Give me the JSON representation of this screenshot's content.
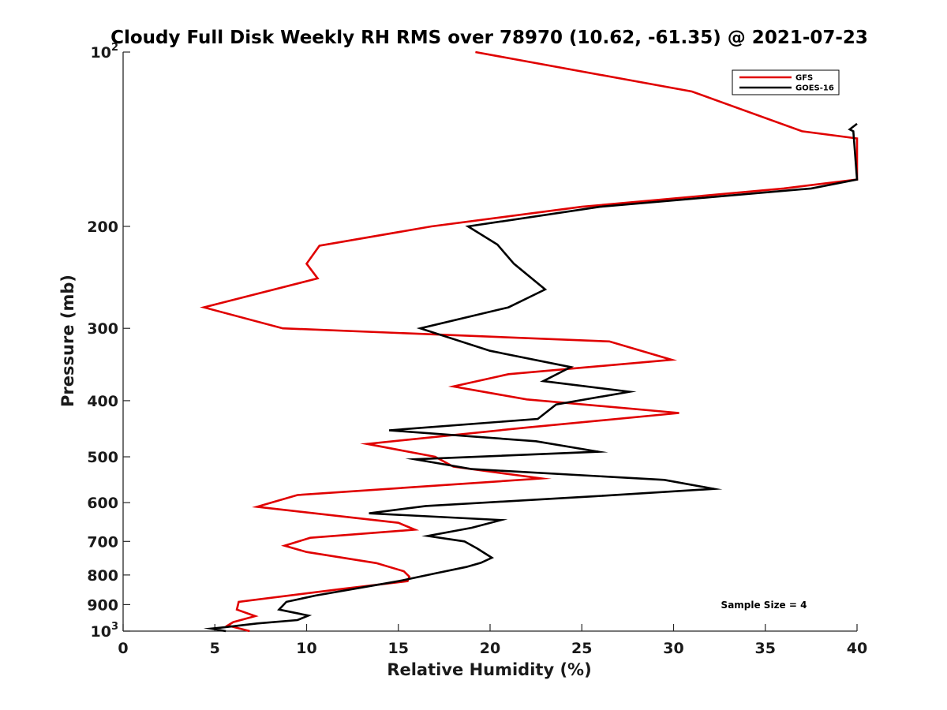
{
  "chart_data": {
    "type": "line",
    "title": "Cloudy Full Disk Weekly RH RMS over 78970 (10.62, -61.35) @ 2021-07-23",
    "xlabel": "Relative Humidity (%)",
    "ylabel": "Pressure (mb)",
    "xlim": [
      0,
      40
    ],
    "ylim": [
      100,
      1000
    ],
    "y_scale": "log",
    "y_reversed": true,
    "x_ticks": [
      0,
      5,
      10,
      15,
      20,
      25,
      30,
      35,
      40
    ],
    "y_ticks": [
      {
        "value": 100,
        "base": "10",
        "exp": "2"
      },
      {
        "value": 200,
        "label": "200"
      },
      {
        "value": 300,
        "label": "300"
      },
      {
        "value": 400,
        "label": "400"
      },
      {
        "value": 500,
        "label": "500"
      },
      {
        "value": 600,
        "label": "600"
      },
      {
        "value": 700,
        "label": "700"
      },
      {
        "value": 800,
        "label": "800"
      },
      {
        "value": 900,
        "label": "900"
      },
      {
        "value": 1000,
        "base": "10",
        "exp": "3"
      }
    ],
    "grid": false,
    "legend_position": "top-right",
    "annotation": "Sample Size = 4",
    "series": [
      {
        "name": "GFS",
        "color": "#e00000",
        "points": [
          [
            19.2,
            100
          ],
          [
            31.0,
            117
          ],
          [
            37.0,
            137
          ],
          [
            40.0,
            141
          ],
          [
            40.0,
            166
          ],
          [
            36.0,
            172
          ],
          [
            25.0,
            185
          ],
          [
            16.8,
            200
          ],
          [
            10.7,
            216
          ],
          [
            10.0,
            232
          ],
          [
            10.6,
            246
          ],
          [
            4.4,
            276
          ],
          [
            8.7,
            300
          ],
          [
            26.5,
            316
          ],
          [
            29.9,
            340
          ],
          [
            21.0,
            360
          ],
          [
            18.0,
            378
          ],
          [
            22.0,
            398
          ],
          [
            30.3,
            420
          ],
          [
            22.0,
            445
          ],
          [
            13.3,
            475
          ],
          [
            17.0,
            500
          ],
          [
            18.0,
            520
          ],
          [
            22.8,
            545
          ],
          [
            9.5,
            582
          ],
          [
            7.3,
            610
          ],
          [
            15.0,
            650
          ],
          [
            15.9,
            668
          ],
          [
            10.2,
            690
          ],
          [
            8.8,
            712
          ],
          [
            10.0,
            730
          ],
          [
            13.8,
            763
          ],
          [
            15.3,
            788
          ],
          [
            15.6,
            805
          ],
          [
            15.5,
            820
          ],
          [
            12.0,
            845
          ],
          [
            6.3,
            890
          ],
          [
            6.2,
            918
          ],
          [
            7.2,
            942
          ],
          [
            6.0,
            965
          ],
          [
            5.7,
            978
          ],
          [
            6.9,
            1000
          ]
        ]
      },
      {
        "name": "GOES-16",
        "color": "#000000",
        "points": [
          [
            40.0,
            133
          ],
          [
            39.6,
            136
          ],
          [
            39.8,
            137
          ],
          [
            40.0,
            166
          ],
          [
            37.5,
            172
          ],
          [
            26.0,
            185
          ],
          [
            18.8,
            200
          ],
          [
            20.4,
            215
          ],
          [
            21.3,
            232
          ],
          [
            23.0,
            257
          ],
          [
            21.0,
            276
          ],
          [
            16.2,
            300
          ],
          [
            20.0,
            328
          ],
          [
            24.4,
            350
          ],
          [
            22.9,
            370
          ],
          [
            27.6,
            386
          ],
          [
            23.6,
            406
          ],
          [
            22.6,
            430
          ],
          [
            14.5,
            450
          ],
          [
            22.5,
            470
          ],
          [
            25.9,
            490
          ],
          [
            15.9,
            505
          ],
          [
            19.0,
            525
          ],
          [
            29.5,
            548
          ],
          [
            32.2,
            568
          ],
          [
            25.7,
            585
          ],
          [
            16.5,
            608
          ],
          [
            13.4,
            626
          ],
          [
            20.6,
            643
          ],
          [
            19.0,
            663
          ],
          [
            16.6,
            685
          ],
          [
            18.6,
            700
          ],
          [
            19.3,
            720
          ],
          [
            20.1,
            747
          ],
          [
            19.5,
            762
          ],
          [
            18.7,
            775
          ],
          [
            17.0,
            795
          ],
          [
            15.0,
            820
          ],
          [
            10.5,
            868
          ],
          [
            8.9,
            890
          ],
          [
            8.5,
            918
          ],
          [
            10.1,
            940
          ],
          [
            9.5,
            957
          ],
          [
            7.3,
            970
          ],
          [
            5.5,
            985
          ],
          [
            4.8,
            990
          ],
          [
            5.6,
            1000
          ]
        ]
      }
    ]
  }
}
